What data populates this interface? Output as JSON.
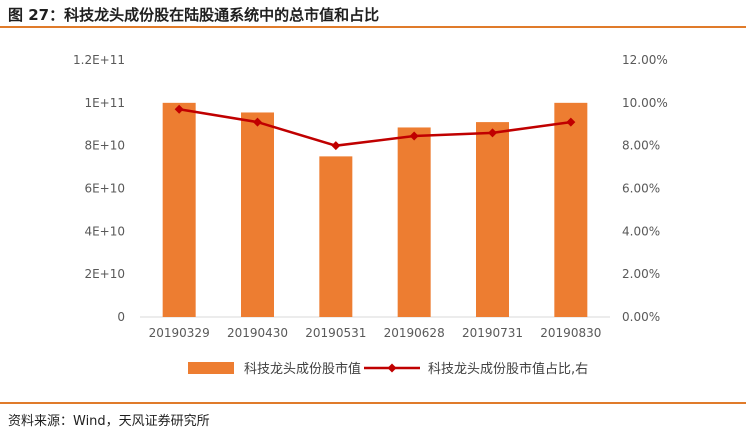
{
  "header": {
    "title": "图 27：科技龙头成份股在陆股通系统中的总市值和占比"
  },
  "footer": {
    "source": "资料来源：Wind，天风证券研究所"
  },
  "colors": {
    "bar": "#ed7d31",
    "line": "#c00000",
    "rule": "#e07b2a"
  },
  "chart_data": {
    "type": "bar",
    "categories": [
      "20190329",
      "20190430",
      "20190531",
      "20190628",
      "20190731",
      "20190830"
    ],
    "series": [
      {
        "name": "科技龙头成份股市值",
        "type": "bar",
        "axis": "left",
        "values": [
          100000000000,
          95500000000,
          75000000000,
          88500000000,
          91000000000,
          100000000000
        ]
      },
      {
        "name": "科技龙头成份股市值占比,右",
        "type": "line",
        "axis": "right",
        "values": [
          0.097,
          0.091,
          0.08,
          0.0845,
          0.086,
          0.091
        ]
      }
    ],
    "y_left": {
      "ylim": [
        0,
        120000000000
      ],
      "ticks": [
        "0",
        "2E+10",
        "4E+10",
        "6E+10",
        "8E+10",
        "1E+11",
        "1.2E+11"
      ]
    },
    "y_right": {
      "ylim": [
        0,
        0.12
      ],
      "ticks": [
        "0.00%",
        "2.00%",
        "4.00%",
        "6.00%",
        "8.00%",
        "10.00%",
        "12.00%"
      ]
    },
    "grid": false,
    "legend_position": "bottom"
  }
}
